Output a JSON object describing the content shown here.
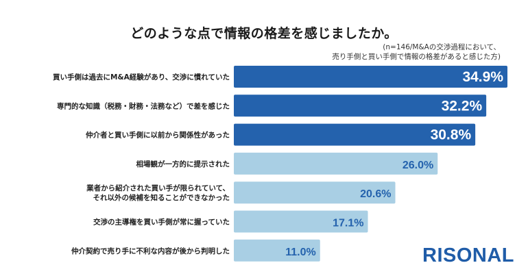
{
  "title": "どのような点で情報の格差を感じましたか。",
  "note": {
    "line1": "(n=146/M&Aの交渉過程において、",
    "line2": "売り手側と買い手側で情報の格差があると感じた方)"
  },
  "brand": {
    "text": "RISONAL",
    "color": "#1f5ca8"
  },
  "colors": {
    "highlight": "#2462ad",
    "normal": "#a9cfe4",
    "label_highlight": "#ffffff",
    "label_normal": "#2462ad"
  },
  "chart_data": {
    "type": "bar",
    "orientation": "horizontal",
    "unit": "%",
    "categories": [
      [
        "買い手側は過去にM&A経験があり、交渉に慣れていた"
      ],
      [
        "専門的な知識（税務・財務・法務など）で差を感じた"
      ],
      [
        "仲介者と買い手側に以前から関係性があった"
      ],
      [
        "相場観が一方的に提示された"
      ],
      [
        "業者から紹介された買い手が限られていて、",
        "それ以外の候補を知ることができなかった"
      ],
      [
        "交渉の主導権を買い手側が常に握っていた"
      ],
      [
        "仲介契約で売り手に不利な内容が後から判明した"
      ]
    ],
    "values": [
      34.9,
      32.2,
      30.8,
      26.0,
      20.6,
      17.1,
      11.0
    ],
    "value_labels": [
      "34.9%",
      "32.2%",
      "30.8%",
      "26.0%",
      "20.6%",
      "17.1%",
      "11.0%"
    ],
    "highlighted": [
      true,
      true,
      true,
      false,
      false,
      false,
      false
    ],
    "xlim": [
      0,
      34.9
    ]
  }
}
